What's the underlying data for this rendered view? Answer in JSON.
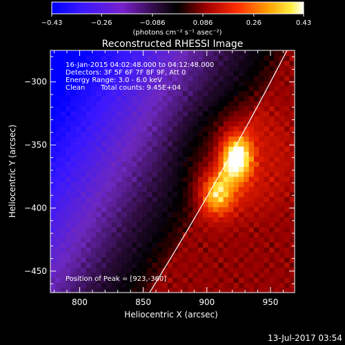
{
  "chart_data": {
    "type": "heatmap",
    "title": "Reconstructed RHESSI Image",
    "xlabel": "Heliocentric X (arcsec)",
    "ylabel": "Heliocentric Y (arcsec)",
    "xlim": [
      777,
      969
    ],
    "ylim": [
      -467,
      -275
    ],
    "x_ticks": [
      800,
      850,
      900,
      950
    ],
    "y_ticks": [
      -300,
      -350,
      -400,
      -450
    ],
    "x_tick_labels": [
      "800",
      "850",
      "900",
      "950"
    ],
    "y_tick_labels": [
      "−300",
      "−350",
      "−400",
      "−450"
    ],
    "colorbar": {
      "min": -0.43,
      "max": 0.43,
      "ticks": [
        -0.43,
        -0.26,
        -0.086,
        0.086,
        0.26,
        0.43
      ],
      "tick_labels": [
        "−0.43",
        "−0.26",
        "−0.086",
        "0.086",
        "0.26",
        "0.43"
      ],
      "units_label": "(photons cm⁻² s⁻¹ asec⁻²)",
      "colormap": "blue-purple-black-red-yellow-white"
    },
    "annotations": {
      "time_range": "16-Jan-2015 04:02:48.000 to 04:12:48.000",
      "detectors": "Detectors: 3F 5F 6F 7F 8F 9F, Att 0",
      "energy_range": "Energy Range: 3.0 - 6.0 keV",
      "method": "Clean",
      "total_counts": "Total counts: 9.45E+04",
      "peak_position": "Position of Peak = [923,-360]"
    },
    "peak": {
      "x": 923,
      "y": -360
    },
    "limb_color": "#ffffff"
  },
  "footer": {
    "date": "13-Jul-2017 03:54"
  },
  "colors": {
    "background": "#000000",
    "text": "#ffffff"
  }
}
